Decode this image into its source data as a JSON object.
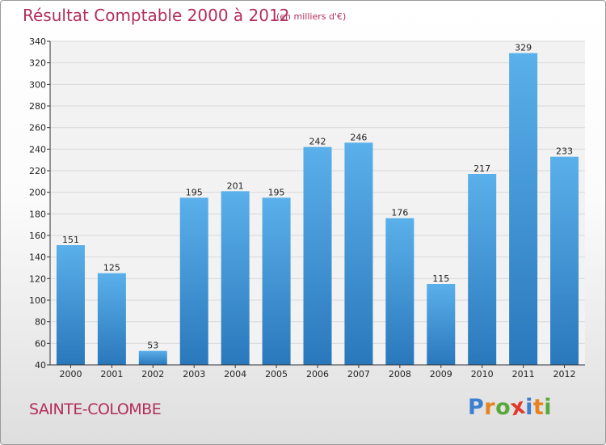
{
  "title": "Résultat Comptable 2000 à 2012",
  "subtitle": "(en milliers d'€)",
  "location": "SAINTE-COLOMBE",
  "logo": {
    "text": "Proxiti",
    "letter_colors": [
      "#3c7fd1",
      "#e8821e",
      "#5aa83a",
      "#e23a2a",
      "#3c7fd1",
      "#e8821e",
      "#5aa83a"
    ]
  },
  "colors": {
    "bar_top": "#5ab0ea",
    "bar_bottom": "#2a78bc",
    "grid": "#d8d8d8",
    "plot_background": "#f2f2f2",
    "axis": "#333333",
    "text_accent": "#b22d5a"
  },
  "chart_data": {
    "type": "bar",
    "title": "Résultat Comptable 2000 à 2012",
    "xlabel": "",
    "ylabel": "",
    "categories": [
      "2000",
      "2001",
      "2002",
      "2003",
      "2004",
      "2005",
      "2006",
      "2007",
      "2008",
      "2009",
      "2010",
      "2011",
      "2012"
    ],
    "values": [
      151,
      125,
      53,
      195,
      201,
      195,
      242,
      246,
      176,
      115,
      217,
      329,
      233
    ],
    "ylim": [
      40,
      340
    ],
    "yticks": [
      40,
      60,
      80,
      100,
      120,
      140,
      160,
      180,
      200,
      220,
      240,
      260,
      280,
      300,
      320,
      340
    ],
    "grid": true
  }
}
